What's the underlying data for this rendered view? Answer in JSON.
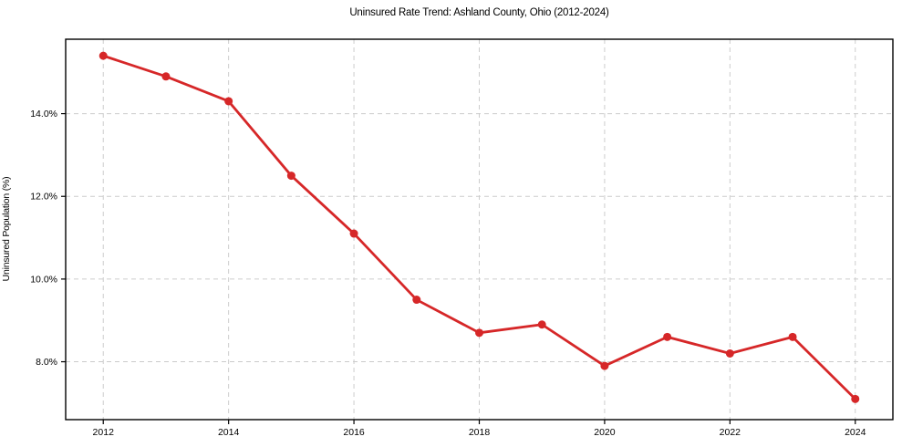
{
  "chart_data": {
    "type": "line",
    "title": "Uninsured Rate Trend: Ashland County, Ohio (2012-2024)",
    "xlabel": "",
    "ylabel": "Uninsured Population (%)",
    "series": [
      {
        "name": "Uninsured Rate",
        "x": [
          2012,
          2013,
          2014,
          2015,
          2016,
          2017,
          2018,
          2019,
          2020,
          2021,
          2022,
          2023,
          2024
        ],
        "values": [
          15.4,
          14.9,
          14.3,
          12.5,
          11.1,
          9.5,
          8.7,
          8.9,
          7.9,
          8.6,
          8.2,
          8.6,
          7.1
        ]
      }
    ],
    "xlim": [
      2011.4,
      2024.6
    ],
    "ylim": [
      6.6,
      15.8
    ],
    "xticks": [
      2012,
      2014,
      2016,
      2018,
      2020,
      2022,
      2024
    ],
    "xtick_labels": [
      "2012",
      "2014",
      "2016",
      "2018",
      "2020",
      "2022",
      "2024"
    ],
    "yticks": [
      8,
      10,
      12,
      14
    ],
    "ytick_labels": [
      "8.0%",
      "10.0%",
      "12.0%",
      "14.0%"
    ],
    "grid": true,
    "legend": "none",
    "colors": {
      "line": "#d62728",
      "marker": "#d62728",
      "grid": "#cccccc",
      "spine": "#000000",
      "tick_text": "#000000",
      "background": "#ffffff"
    }
  }
}
